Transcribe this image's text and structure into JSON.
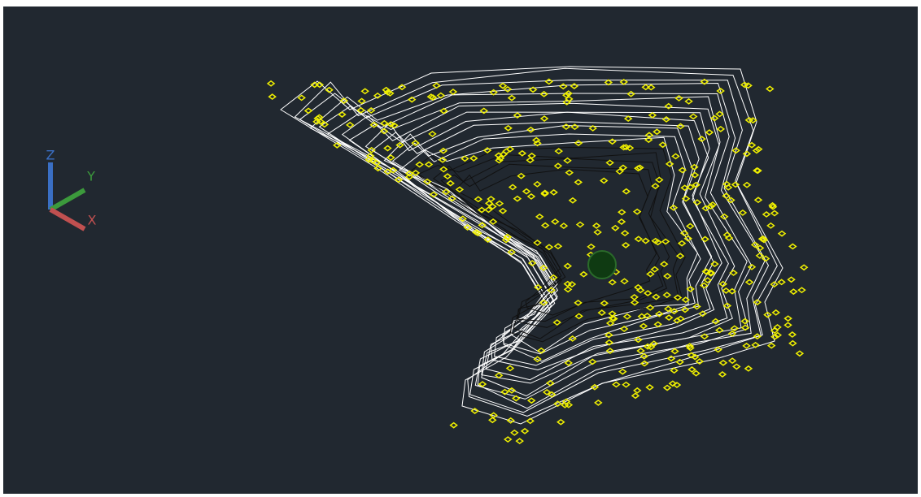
{
  "ucs": {
    "z_label": "Z",
    "y_label": "Y",
    "x_label": "X"
  }
}
